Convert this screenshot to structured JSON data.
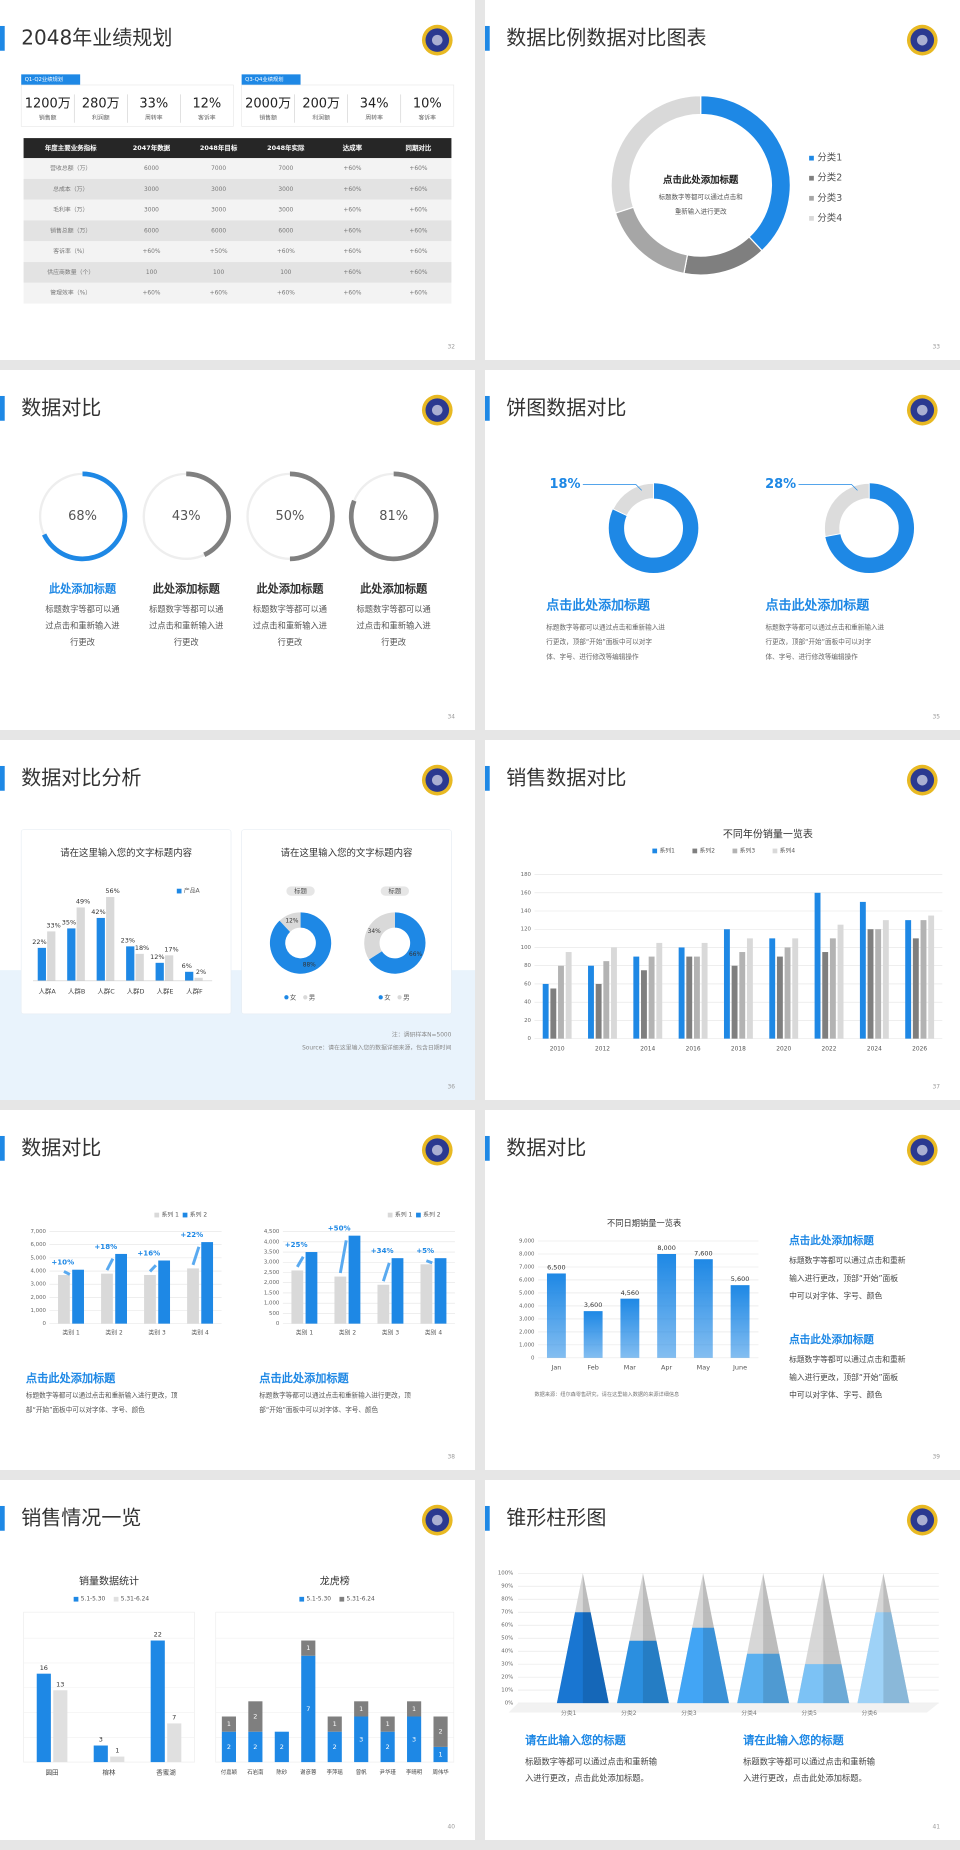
{
  "slides": [
    {
      "type": "kpi-table",
      "title": "2048年业绩规划",
      "page": "32",
      "kpi_groups": [
        {
          "tag": "Q1-Q2业绩规划",
          "items": [
            {
              "value": "1200万",
              "label": "销售额"
            },
            {
              "value": "280万",
              "label": "利润额"
            },
            {
              "value": "33%",
              "label": "周转率"
            },
            {
              "value": "12%",
              "label": "客诉率"
            }
          ]
        },
        {
          "tag": "Q3-Q4业绩规划",
          "items": [
            {
              "value": "2000万",
              "label": "销售额"
            },
            {
              "value": "200万",
              "label": "利润额"
            },
            {
              "value": "34%",
              "label": "周转率"
            },
            {
              "value": "10%",
              "label": "客诉率"
            }
          ]
        }
      ],
      "table": {
        "header": [
          "年度主要业务指标",
          "2047年数据",
          "2048年目标",
          "2048年实际",
          "达成率",
          "同期对比"
        ],
        "rows": [
          [
            "营收总额（万）",
            "6000",
            "7000",
            "7000",
            "+60%",
            "+60%"
          ],
          [
            "总成本（万）",
            "3000",
            "3000",
            "3000",
            "+60%",
            "+60%"
          ],
          [
            "毛利率（万）",
            "3000",
            "3000",
            "3000",
            "+60%",
            "+60%"
          ],
          [
            "销售总额（万）",
            "6000",
            "6000",
            "6000",
            "+60%",
            "+60%"
          ],
          [
            "客诉率（%）",
            "+60%",
            "+50%",
            "+60%",
            "+60%",
            "+60%"
          ],
          [
            "供应商数量（个）",
            "100",
            "100",
            "100",
            "+60%",
            "+60%"
          ],
          [
            "管理效率（%）",
            "+60%",
            "+60%",
            "+60%",
            "+60%",
            "+60%"
          ]
        ]
      }
    },
    {
      "type": "donut-legend",
      "title": "数据比例数据对比图表",
      "page": "33",
      "chart": {
        "categories": [
          "分类1",
          "分类2",
          "分类3",
          "分类4"
        ],
        "values": [
          38,
          15,
          17,
          30
        ],
        "colors": [
          "#1e88e5",
          "#7f7f7f",
          "#a6a6a6",
          "#d9d9d9"
        ],
        "center_title": "点击此处添加标题",
        "center_lines": [
          "标题数字等都可以通过点击和",
          "重新输入进行更改"
        ]
      }
    },
    {
      "type": "rings",
      "title": "数据对比",
      "page": "34",
      "items": [
        {
          "value": 68,
          "value_label": "68%",
          "color": "#1e88e5",
          "title_color": "#1e88e5",
          "title": "此处添加标题",
          "lines": [
            "标题数字等都可以通",
            "过点击和重新输入进",
            "行更改"
          ]
        },
        {
          "value": 43,
          "value_label": "43%",
          "color": "#808080",
          "title_color": "#333333",
          "title": "此处添加标题",
          "lines": [
            "标题数字等都可以通",
            "过点击和重新输入进",
            "行更改"
          ]
        },
        {
          "value": 50,
          "value_label": "50%",
          "color": "#808080",
          "title_color": "#333333",
          "title": "此处添加标题",
          "lines": [
            "标题数字等都可以通",
            "过点击和重新输入进",
            "行更改"
          ]
        },
        {
          "value": 81,
          "value_label": "81%",
          "color": "#808080",
          "title_color": "#333333",
          "title": "此处添加标题",
          "lines": [
            "标题数字等都可以通",
            "过点击和重新输入进",
            "行更改"
          ]
        }
      ]
    },
    {
      "type": "pies",
      "title": "饼图数据对比",
      "page": "35",
      "items": [
        {
          "value": 18,
          "value_label": "18%",
          "color": "#dcdcdc",
          "ring_color": "#1e88e5",
          "title": "点击此处添加标题",
          "lines": [
            "标题数字等都可以通过点击和重新输入进",
            "行更改，顶部“开始”面板中可以对字",
            "体、字号、进行修改等编辑操作"
          ]
        },
        {
          "value": 28,
          "value_label": "28%",
          "color": "#dcdcdc",
          "ring_color": "#1e88e5",
          "title": "点击此处添加标题",
          "lines": [
            "标题数字等都可以通过点击和重新输入进",
            "行更改，顶部“开始”面板中可以对字",
            "体、字号、进行修改等编辑操作"
          ]
        }
      ]
    },
    {
      "type": "analysis",
      "title": "数据对比分析",
      "page": "36",
      "bars": {
        "title": "请在这里输入您的文字标题内容",
        "categories": [
          "人群A",
          "人群B",
          "人群C",
          "人群D",
          "人群E",
          "人群F"
        ],
        "series": [
          {
            "name": "产品A",
            "color": "#1e88e5",
            "values": [
              22,
              35,
              42,
              23,
              12,
              6
            ],
            "value_labels": [
              "22%",
              "35%",
              "42%",
              "23%",
              "12%",
              "6%"
            ]
          },
          {
            "color": "#d9d9d9",
            "values": [
              33,
              49,
              56,
              18,
              17,
              2
            ],
            "value_labels": [
              "33%",
              "49%",
              "56%",
              "18%",
              "17%",
              "2%"
            ]
          }
        ]
      },
      "donuts": {
        "title": "请在这里输入您的文字标题内容",
        "series_names": [
          "女",
          "男"
        ],
        "colors": [
          "#1e88e5",
          "#d9d9d9"
        ],
        "items": [
          {
            "tag": "标题",
            "values": [
              88,
              12
            ],
            "value_labels": [
              "88%",
              "12%"
            ]
          },
          {
            "tag": "标题",
            "values": [
              66,
              34
            ],
            "value_labels": [
              "66%",
              "34%"
            ]
          }
        ]
      },
      "notes": [
        "注：调研样本N=5000",
        "Source：请在这里输入您的数据详细来源，包含日期时间"
      ]
    },
    {
      "type": "grouped-bar",
      "title": "销售数据对比",
      "page": "37",
      "chart": {
        "title": "不同年份销量一览表",
        "categories": [
          "2010",
          "2012",
          "2014",
          "2016",
          "2018",
          "2020",
          "2022",
          "2024",
          "2026"
        ],
        "series": [
          {
            "name": "系列1",
            "color": "#1e88e5",
            "values": [
              60,
              80,
              90,
              100,
              120,
              110,
              160,
              150,
              130
            ]
          },
          {
            "name": "系列2",
            "color": "#7f7f7f",
            "values": [
              55,
              60,
              75,
              90,
              80,
              90,
              95,
              120,
              110
            ]
          },
          {
            "name": "系列3",
            "color": "#b3b3b3",
            "values": [
              80,
              85,
              90,
              90,
              95,
              100,
              110,
              120,
              130
            ]
          },
          {
            "name": "系列4",
            "color": "#d9d9d9",
            "values": [
              95,
              100,
              105,
              105,
              110,
              110,
              125,
              130,
              135
            ]
          }
        ],
        "ylim": [
          0,
          180
        ],
        "yticks": [
          0,
          20,
          40,
          60,
          80,
          100,
          120,
          140,
          160,
          180
        ],
        "grid": true
      }
    },
    {
      "type": "dual-bar",
      "title": "数据对比",
      "page": "38",
      "panels": [
        {
          "chart": {
            "categories": [
              "类别 1",
              "类别 2",
              "类别 3",
              "类别 4"
            ],
            "series": [
              {
                "name": "系列 1",
                "color": "#d9d9d9",
                "values": [
                  3700,
                  3800,
                  3700,
                  4200
                ]
              },
              {
                "name": "系列 2",
                "color": "#1e88e5",
                "values": [
                  4100,
                  5300,
                  4800,
                  6200
                ]
              }
            ],
            "annotations": [
              "+10%",
              "+18%",
              "+16%",
              "+22%"
            ],
            "ylim": [
              0,
              7000
            ],
            "yticks": [
              0,
              {
                "value": 1000,
                "label": "1,000"
              },
              {
                "value": 2000,
                "label": "2,000"
              },
              {
                "value": 3000,
                "label": "3,000"
              },
              {
                "value": 4000,
                "label": "4,000"
              },
              {
                "value": 5000,
                "label": "5,000"
              },
              {
                "value": 6000,
                "label": "6,000"
              },
              {
                "value": 7000,
                "label": "7,000"
              }
            ],
            "grid": true
          },
          "heading": "点击此处添加标题",
          "lines": [
            "标题数字等都可以通过点击和重新输入进行更改，顶",
            "部“开始”面板中可以对字体、字号、颜色"
          ]
        },
        {
          "chart": {
            "categories": [
              "类别 1",
              "类别 2",
              "类别 3",
              "类别 4"
            ],
            "series": [
              {
                "name": "系列 1",
                "color": "#d9d9d9",
                "values": [
                  2600,
                  2300,
                  1900,
                  2900
                ]
              },
              {
                "name": "系列 2",
                "color": "#1e88e5",
                "values": [
                  3500,
                  4300,
                  3200,
                  3200
                ]
              }
            ],
            "annotations": [
              "+25%",
              "+50%",
              "+34%",
              "+5%"
            ],
            "ylim": [
              0,
              4500
            ],
            "yticks": [
              0,
              500,
              {
                "value": 1000,
                "label": "1,000"
              },
              {
                "value": 1500,
                "label": "1,500"
              },
              {
                "value": 2000,
                "label": "2,000"
              },
              {
                "value": 2500,
                "label": "2,500"
              },
              {
                "value": 3000,
                "label": "3,000"
              },
              {
                "value": 3500,
                "label": "3,500"
              },
              {
                "value": 4000,
                "label": "4,000"
              },
              {
                "value": 4500,
                "label": "4,500"
              }
            ],
            "grid": true
          },
          "heading": "点击此处添加标题",
          "lines": [
            "标题数字等都可以通过点击和重新输入进行更改，顶",
            "部“开始”面板中可以对字体、字号、颜色"
          ]
        }
      ]
    },
    {
      "type": "bar-text",
      "title": "数据对比",
      "page": "39",
      "chart": {
        "title": "不同日期销量一览表",
        "categories": [
          "Jan",
          "Feb",
          "Mar",
          "Apr",
          "May",
          "June"
        ],
        "values": [
          6500,
          3600,
          4560,
          8000,
          7600,
          5600
        ],
        "value_labels": [
          "6,500",
          "3,600",
          "4,560",
          "8,000",
          "7,600",
          "5,600"
        ],
        "color": "#1e88e5",
        "ylim": [
          0,
          9000
        ],
        "yticks": [
          0,
          {
            "value": 1000,
            "label": "1,000"
          },
          {
            "value": 2000,
            "label": "2,000"
          },
          {
            "value": 3000,
            "label": "3,000"
          },
          {
            "value": 4000,
            "label": "4,000"
          },
          {
            "value": 5000,
            "label": "5,000"
          },
          {
            "value": 6000,
            "label": "6,000"
          },
          {
            "value": 7000,
            "label": "7,000"
          },
          {
            "value": 8000,
            "label": "8,000"
          },
          {
            "value": 9000,
            "label": "9,000"
          }
        ],
        "grid": true,
        "source": "数据来源：纽尔森零售研究，请在这里输入数据的来源详细信息"
      },
      "blocks": [
        {
          "title": "点击此处添加标题",
          "lines": [
            "标题数字等都可以通过点击和重新",
            "输入进行更改，顶部“开始”面板",
            "中可以对字体、字号、颜色"
          ]
        },
        {
          "title": "点击此处添加标题",
          "lines": [
            "标题数字等都可以通过点击和重新",
            "输入进行更改，顶部“开始”面板",
            "中可以对字体、字号、颜色"
          ]
        }
      ]
    },
    {
      "type": "sales",
      "title": "销售情况一览",
      "page": "40",
      "charts": [
        {
          "title": "销量数据统计",
          "stacked": false,
          "categories": [
            "圆田",
            "榕林",
            "香蜜湖"
          ],
          "series": [
            {
              "name": "5.1-5.30",
              "color": "#1e88e5",
              "values": [
                16,
                3,
                22
              ]
            },
            {
              "name": "5.31-6.24",
              "color": "#e0e0e0",
              "values": [
                13,
                1,
                7
              ]
            }
          ]
        },
        {
          "title": "龙虎榜",
          "stacked": true,
          "categories": [
            "付嘉颖",
            "石岩南",
            "陈砂",
            "谢彦蓉",
            "李萍瑶",
            "曾帆",
            "尹华瑾",
            "李晴明",
            "周伟华"
          ],
          "series": [
            {
              "name": "5.1-5.30",
              "color": "#1e88e5",
              "values": [
                2,
                2,
                2,
                7,
                2,
                3,
                2,
                3,
                1
              ]
            },
            {
              "name": "5.31-6.24",
              "color": "#7f7f7f",
              "values": [
                1,
                2,
                null,
                1,
                1,
                1,
                1,
                1,
                2
              ]
            }
          ]
        }
      ]
    },
    {
      "type": "cone",
      "title": "锥形柱形图",
      "page": "41",
      "chart": {
        "categories": [
          "分类1",
          "分类2",
          "分类3",
          "分类4",
          "分类5",
          "分类6"
        ],
        "values": [
          70,
          48,
          58,
          38,
          30,
          70
        ],
        "colors": [
          "#1976d2",
          "#2b8fe0",
          "#42a5f5",
          "#5ab0f0",
          "#7cc2f5",
          "#9ed2f7"
        ],
        "ylim": [
          0,
          100
        ],
        "yticks": [
          {
            "value": 0,
            "label": "0%"
          },
          {
            "value": 10,
            "label": "10%"
          },
          {
            "value": 20,
            "label": "20%"
          },
          {
            "value": 30,
            "label": "30%"
          },
          {
            "value": 40,
            "label": "40%"
          },
          {
            "value": 50,
            "label": "50%"
          },
          {
            "value": 60,
            "label": "60%"
          },
          {
            "value": 70,
            "label": "70%"
          },
          {
            "value": 80,
            "label": "80%"
          },
          {
            "value": 90,
            "label": "90%"
          },
          {
            "value": 100,
            "label": "100%"
          }
        ],
        "grid": true
      },
      "blocks": [
        {
          "title": "请在此输入您的标题",
          "lines": [
            "标题数字等都可以通过点击和重新输",
            "入进行更改，点击此处添加标题。"
          ]
        },
        {
          "title": "请在此输入您的标题",
          "lines": [
            "标题数字等都可以通过点击和重新输",
            "入进行更改，点击此处添加标题。"
          ]
        }
      ]
    }
  ]
}
